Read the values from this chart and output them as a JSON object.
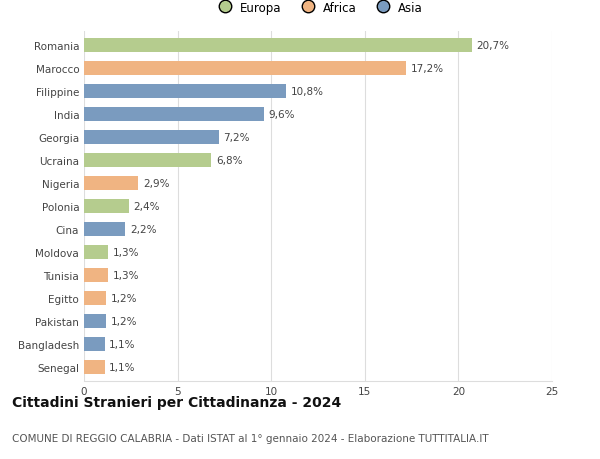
{
  "countries": [
    "Romania",
    "Marocco",
    "Filippine",
    "India",
    "Georgia",
    "Ucraina",
    "Nigeria",
    "Polonia",
    "Cina",
    "Moldova",
    "Tunisia",
    "Egitto",
    "Pakistan",
    "Bangladesh",
    "Senegal"
  ],
  "values": [
    20.7,
    17.2,
    10.8,
    9.6,
    7.2,
    6.8,
    2.9,
    2.4,
    2.2,
    1.3,
    1.3,
    1.2,
    1.2,
    1.1,
    1.1
  ],
  "labels": [
    "20,7%",
    "17,2%",
    "10,8%",
    "9,6%",
    "7,2%",
    "6,8%",
    "2,9%",
    "2,4%",
    "2,2%",
    "1,3%",
    "1,3%",
    "1,2%",
    "1,2%",
    "1,1%",
    "1,1%"
  ],
  "continents": [
    "Europa",
    "Africa",
    "Asia",
    "Asia",
    "Asia",
    "Europa",
    "Africa",
    "Europa",
    "Asia",
    "Europa",
    "Africa",
    "Africa",
    "Asia",
    "Asia",
    "Africa"
  ],
  "colors": {
    "Europa": "#b5cc8e",
    "Africa": "#f0b482",
    "Asia": "#7a9bbf"
  },
  "xlim": [
    0,
    25
  ],
  "xticks": [
    0,
    5,
    10,
    15,
    20,
    25
  ],
  "title": "Cittadini Stranieri per Cittadinanza - 2024",
  "subtitle": "COMUNE DI REGGIO CALABRIA - Dati ISTAT al 1° gennaio 2024 - Elaborazione TUTTITALIA.IT",
  "background_color": "#ffffff",
  "grid_color": "#dddddd",
  "bar_height": 0.65,
  "title_fontsize": 10,
  "subtitle_fontsize": 7.5,
  "label_fontsize": 7.5,
  "tick_fontsize": 7.5,
  "legend_fontsize": 8.5
}
